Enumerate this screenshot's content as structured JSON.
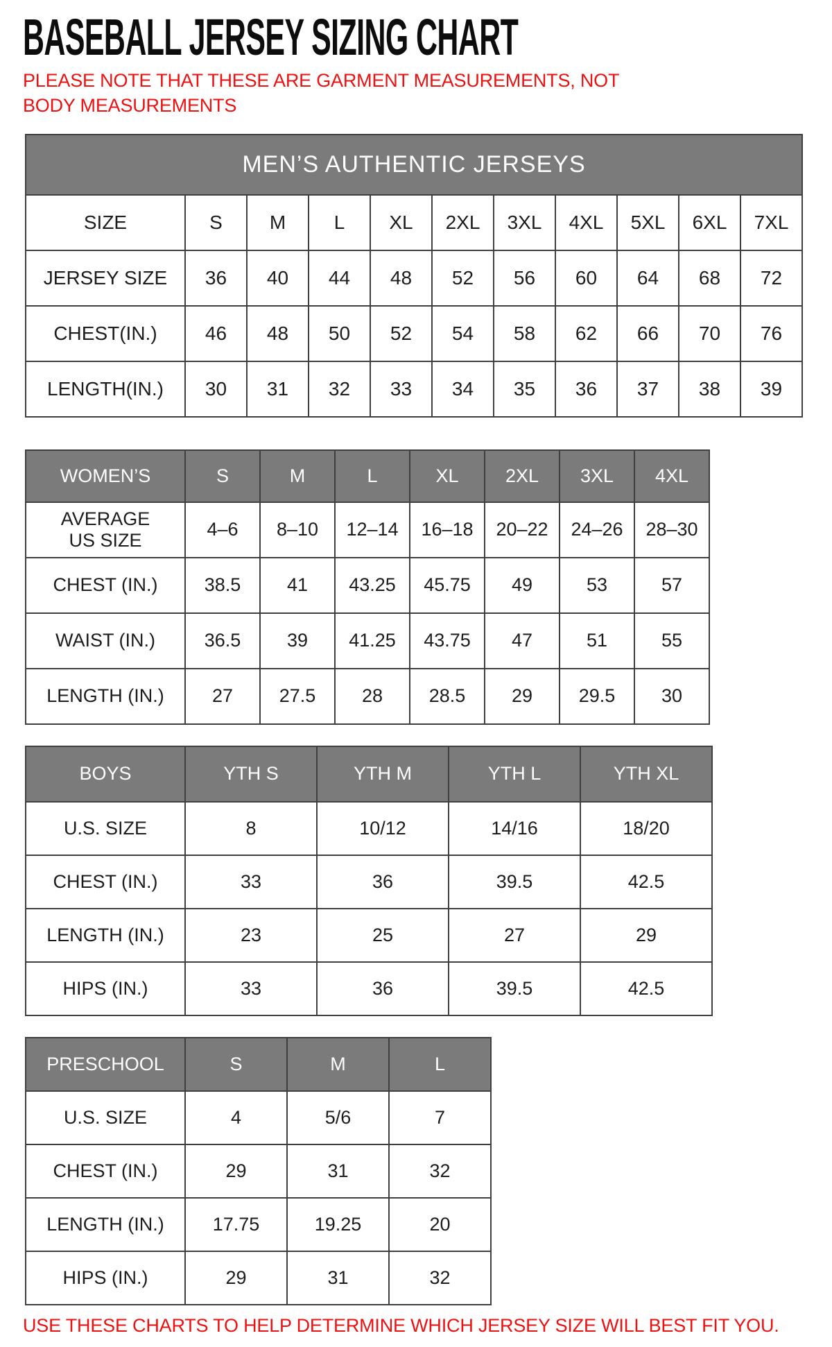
{
  "page": {
    "title": "BASEBALL JERSEY SIZING CHART",
    "note": "PLEASE NOTE THAT THESE ARE GARMENT MEASUREMENTS, NOT BODY MEASUREMENTS",
    "footer": "USE THESE CHARTS TO HELP DETERMINE WHICH JERSEY SIZE WILL BEST FIT YOU."
  },
  "colors": {
    "accent_red": "#ed1111",
    "header_gray": "#7b7b7b",
    "border": "#3f3f3f",
    "text": "#1c1c1c"
  },
  "tables": {
    "mens": {
      "banner": "MEN’S AUTHENTIC JERSEYS",
      "header": [
        "SIZE",
        "S",
        "M",
        "L",
        "XL",
        "2XL",
        "3XL",
        "4XL",
        "5XL",
        "6XL",
        "7XL"
      ],
      "rows": [
        [
          "JERSEY SIZE",
          "36",
          "40",
          "44",
          "48",
          "52",
          "56",
          "60",
          "64",
          "68",
          "72"
        ],
        [
          "CHEST(IN.)",
          "46",
          "48",
          "50",
          "52",
          "54",
          "58",
          "62",
          "66",
          "70",
          "76"
        ],
        [
          "LENGTH(IN.)",
          "30",
          "31",
          "32",
          "33",
          "34",
          "35",
          "36",
          "37",
          "38",
          "39"
        ]
      ]
    },
    "womens": {
      "header": [
        "WOMEN’S",
        "S",
        "M",
        "L",
        "XL",
        "2XL",
        "3XL",
        "4XL"
      ],
      "rows": [
        [
          "AVERAGE\nUS SIZE",
          "4–6",
          "8–10",
          "12–14",
          "16–18",
          "20–22",
          "24–26",
          "28–30"
        ],
        [
          "CHEST (IN.)",
          "38.5",
          "41",
          "43.25",
          "45.75",
          "49",
          "53",
          "57"
        ],
        [
          "WAIST (IN.)",
          "36.5",
          "39",
          "41.25",
          "43.75",
          "47",
          "51",
          "55"
        ],
        [
          "LENGTH (IN.)",
          "27",
          "27.5",
          "28",
          "28.5",
          "29",
          "29.5",
          "30"
        ]
      ]
    },
    "boys": {
      "header": [
        "BOYS",
        "YTH S",
        "YTH M",
        "YTH L",
        "YTH XL"
      ],
      "rows": [
        [
          "U.S. SIZE",
          "8",
          "10/12",
          "14/16",
          "18/20"
        ],
        [
          "CHEST (IN.)",
          "33",
          "36",
          "39.5",
          "42.5"
        ],
        [
          "LENGTH (IN.)",
          "23",
          "25",
          "27",
          "29"
        ],
        [
          "HIPS (IN.)",
          "33",
          "36",
          "39.5",
          "42.5"
        ]
      ]
    },
    "preschool": {
      "header": [
        "PRESCHOOL",
        "S",
        "M",
        "L"
      ],
      "rows": [
        [
          "U.S. SIZE",
          "4",
          "5/6",
          "7"
        ],
        [
          "CHEST (IN.)",
          "29",
          "31",
          "32"
        ],
        [
          "LENGTH (IN.)",
          "17.75",
          "19.25",
          "20"
        ],
        [
          "HIPS (IN.)",
          "29",
          "31",
          "32"
        ]
      ]
    }
  }
}
